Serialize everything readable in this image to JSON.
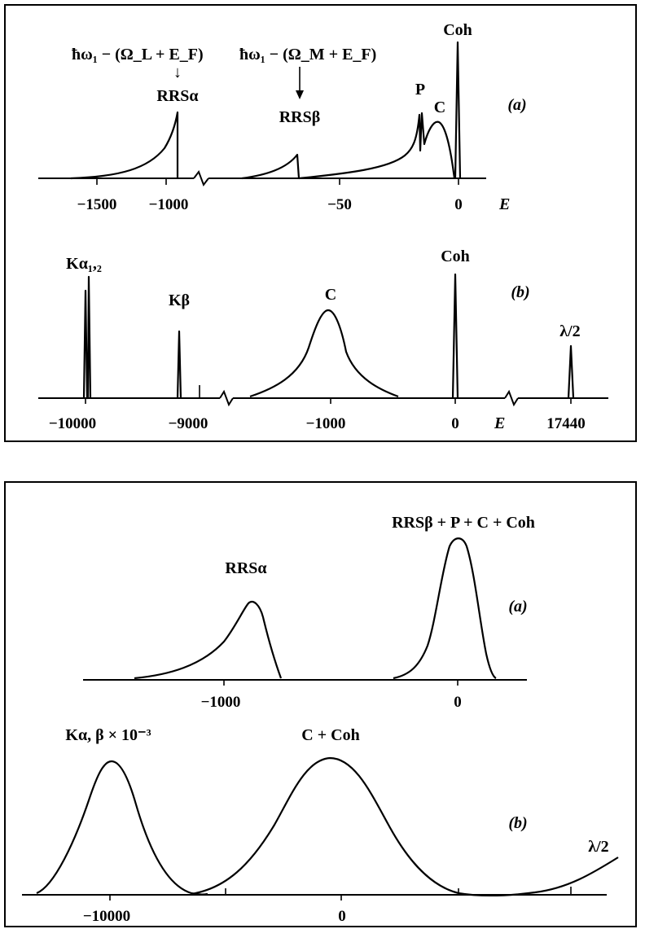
{
  "chart_data": [
    {
      "type": "line",
      "panel": "(a)",
      "peaks": [
        {
          "label": "RRSα",
          "position": -1000,
          "relative_height": 0.55,
          "shape": "asymmetric edge"
        },
        {
          "label": "RRSβ",
          "position": -50,
          "relative_height": 0.18,
          "shape": "asymmetric edge"
        },
        {
          "label": "P",
          "position": -15,
          "relative_height": 0.57,
          "shape": "narrow double line"
        },
        {
          "label": "C",
          "position": -7,
          "relative_height": 0.48,
          "shape": "broad"
        },
        {
          "label": "Coh",
          "position": 0,
          "relative_height": 1.0,
          "shape": "delta"
        }
      ],
      "annotations": [
        "ħω₁ − (Ω_L + E_F)",
        "ħω₁ − (Ω_M + E_F)"
      ],
      "x_ticks": [
        "−1500",
        "−1000",
        "−50",
        "0"
      ],
      "xlabel": "E",
      "axis_break": "after −1000"
    },
    {
      "type": "line",
      "panel": "(b)",
      "peaks": [
        {
          "label": "Kα₁,₂",
          "position": -10000,
          "relative_height": 0.97,
          "shape": "doublet"
        },
        {
          "label": "Kβ",
          "position": -9100,
          "relative_height": 0.48,
          "shape": "narrow"
        },
        {
          "label": "C",
          "position": -1000,
          "relative_height": 0.58,
          "shape": "broad"
        },
        {
          "label": "Coh",
          "position": 0,
          "relative_height": 1.0,
          "shape": "narrow"
        },
        {
          "label": "λ/2",
          "position": 17440,
          "relative_height": 0.35,
          "shape": "narrow"
        }
      ],
      "x_ticks": [
        "−10000",
        "−9000",
        "−1000",
        "0",
        "17440"
      ],
      "xlabel": "E",
      "axis_breaks": [
        "between −9000 and −1000",
        "between 0 and 17440"
      ]
    },
    {
      "type": "line",
      "panel": "(a)",
      "peaks": [
        {
          "label": "RRSα",
          "position": -900,
          "relative_height": 0.66,
          "shape": "broadened"
        },
        {
          "label": "RRSβ + P + C + Coh",
          "position": 0,
          "relative_height": 1.0,
          "shape": "broadened"
        }
      ],
      "x_ticks": [
        "−1000",
        "0"
      ]
    },
    {
      "type": "line",
      "panel": "(b)",
      "peaks": [
        {
          "label": "Kα, β × 10⁻³",
          "position": -10000,
          "relative_height": 1.0,
          "shape": "gaussian"
        },
        {
          "label": "C + Coh",
          "position": -800,
          "relative_height": 1.0,
          "shape": "gaussian"
        },
        {
          "label": "λ/2",
          "position": 17440,
          "relative_height": 0.1,
          "shape": "tail"
        }
      ],
      "x_ticks": [
        "−10000",
        "0"
      ]
    }
  ],
  "figure1": {
    "a": {
      "panel_label": "(a)",
      "formula_alpha": "ħω₁ − (Ω_L + E_F)",
      "formula_beta": "ħω₁ − (Ω_M + E_F)",
      "arrow_symbol": "↓",
      "labels": {
        "rrs_alpha": "RRSα",
        "rrs_beta": "RRSβ",
        "p": "P",
        "c": "C",
        "coh": "Coh"
      },
      "ticks": [
        "−1500",
        "−1000",
        "−50",
        "0"
      ],
      "xlabel": "E"
    },
    "b": {
      "panel_label": "(b)",
      "labels": {
        "k_alpha": "Kα₁,₂",
        "k_beta": "Kβ",
        "c": "C",
        "coh": "Coh",
        "half": "λ/2"
      },
      "ticks": [
        "−10000",
        "−9000",
        "−1000",
        "0",
        "17440"
      ],
      "xlabel": "E"
    }
  },
  "figure2": {
    "a": {
      "panel_label": "(a)",
      "labels": {
        "rrs_alpha": "RRSα",
        "sum": "RRSβ + P + C + Coh"
      },
      "ticks": [
        "−1000",
        "0"
      ]
    },
    "b": {
      "panel_label": "(b)",
      "labels": {
        "k": "Kα, β × 10⁻³",
        "c_coh": "C + Coh",
        "half": "λ/2"
      },
      "ticks": [
        "−10000",
        "0"
      ]
    }
  }
}
